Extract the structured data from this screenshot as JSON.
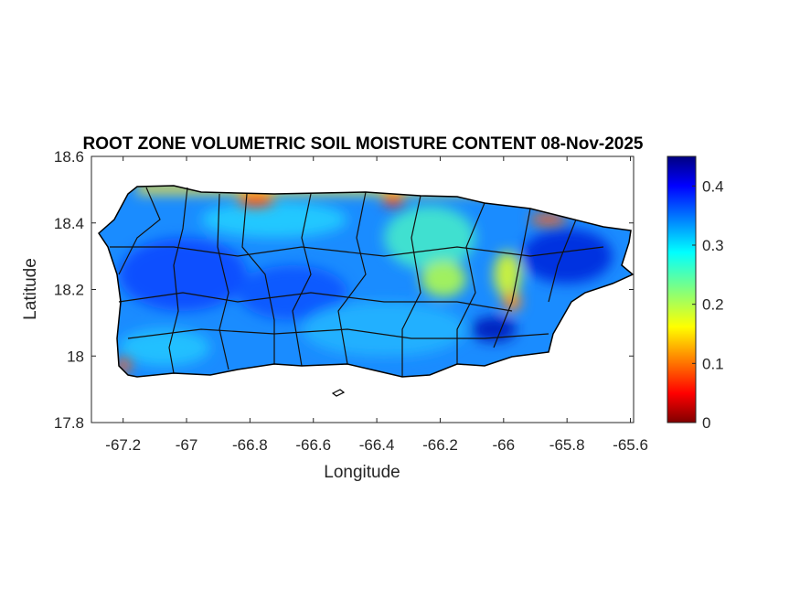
{
  "chart_data": {
    "type": "heatmap",
    "title": "ROOT ZONE VOLUMETRIC SOIL MOISTURE CONTENT 08-Nov-2025",
    "xlabel": "Longitude",
    "ylabel": "Latitude",
    "xlim": [
      -67.3,
      -65.59
    ],
    "ylim": [
      17.8,
      18.6
    ],
    "xticks": [
      -67.2,
      -67,
      -66.8,
      -66.6,
      -66.4,
      -66.2,
      -66,
      -65.8,
      -65.6
    ],
    "xtick_labels": [
      "-67.2",
      "-67",
      "-66.8",
      "-66.6",
      "-66.4",
      "-66.2",
      "-66",
      "-65.8",
      "-65.6"
    ],
    "yticks": [
      17.8,
      18,
      18.2,
      18.4,
      18.6
    ],
    "ytick_labels": [
      "17.8",
      "18",
      "18.2",
      "18.4",
      "18.6"
    ],
    "colorbar": {
      "colormap": "jet",
      "range": [
        0,
        0.45
      ],
      "ticks": [
        0,
        0.1,
        0.2,
        0.3,
        0.4
      ],
      "tick_labels": [
        "0",
        "0.1",
        "0.2",
        "0.3",
        "0.4"
      ]
    },
    "grid": false,
    "summary": {
      "typical_value": 0.32,
      "dry_areas": "north coast, east-central interior",
      "wet_areas": "western and southeastern interior"
    }
  }
}
